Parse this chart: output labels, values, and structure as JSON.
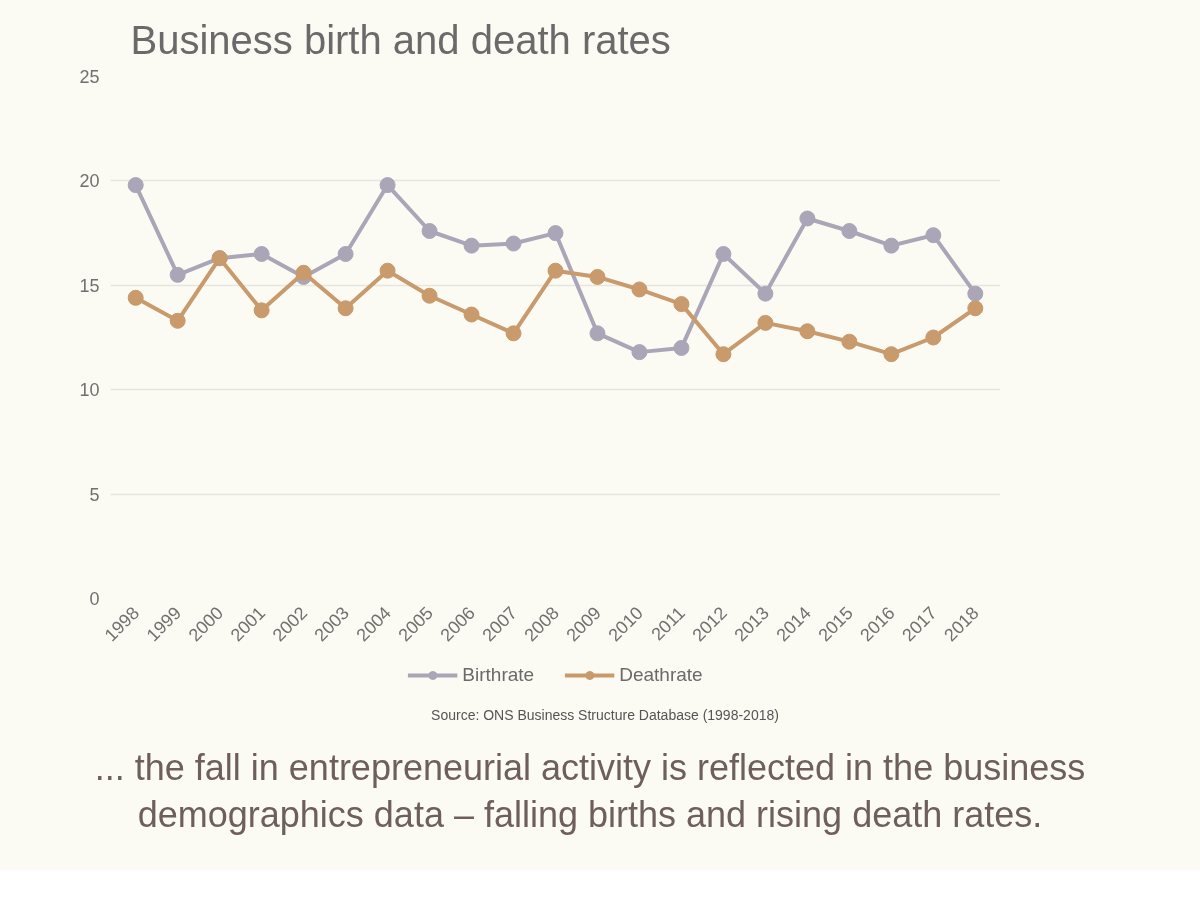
{
  "chart_data": {
    "type": "line",
    "title": "Business birth and death rates",
    "categories": [
      "1998",
      "1999",
      "2000",
      "2001",
      "2002",
      "2003",
      "2004",
      "2005",
      "2006",
      "2007",
      "2008",
      "2009",
      "2010",
      "2011",
      "2012",
      "2013",
      "2014",
      "2015",
      "2016",
      "2017",
      "2018"
    ],
    "series": [
      {
        "name": "Birthrate",
        "color": "#aaa6b8",
        "values": [
          19.8,
          15.5,
          16.3,
          16.5,
          15.4,
          16.5,
          19.8,
          17.6,
          16.9,
          17.0,
          17.5,
          12.7,
          11.8,
          12.0,
          16.5,
          14.6,
          18.2,
          17.6,
          16.9,
          17.4,
          14.6
        ]
      },
      {
        "name": "Deathrate",
        "color": "#c89a6c",
        "values": [
          14.4,
          13.3,
          16.3,
          13.8,
          15.6,
          13.9,
          15.7,
          14.5,
          13.6,
          12.7,
          15.7,
          15.4,
          14.8,
          14.1,
          11.7,
          13.2,
          12.8,
          12.3,
          11.7,
          12.5,
          13.9
        ]
      }
    ],
    "ylim": [
      0,
      25
    ],
    "yticks": [
      0,
      5,
      10,
      15,
      20,
      25
    ],
    "grid": "y",
    "legend": "bottom",
    "marker": "circle",
    "annotations": [
      "Source: ONS Business Structure Database (1998-2018)",
      "... the fall in entrepreneurial activity is reflected in the business demographics data – falling births and rising death rates."
    ]
  }
}
